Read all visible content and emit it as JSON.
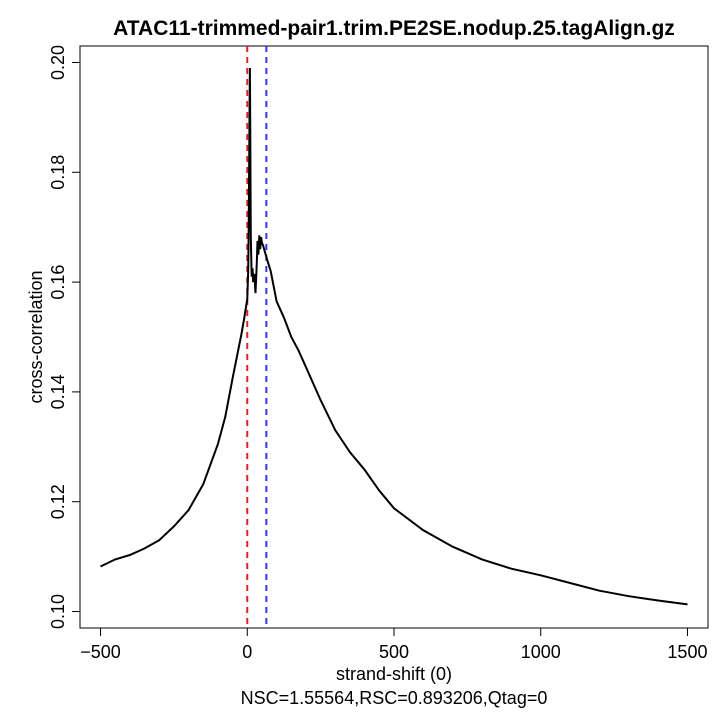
{
  "chart_data": {
    "type": "line",
    "title": "ATAC11-trimmed-pair1.trim.PE2SE.nodup.25.tagAlign.gz",
    "xlabel": "strand-shift (0)",
    "subtitle": "NSC=1.55564,RSC=0.893206,Qtag=0",
    "ylabel": "cross-correlation",
    "xlim": [
      -570,
      1570
    ],
    "ylim": [
      0.097,
      0.203
    ],
    "xticks": [
      -500,
      0,
      500,
      1000,
      1500
    ],
    "xtick_labels": [
      "−500",
      "0",
      "500",
      "1000",
      "1500"
    ],
    "yticks": [
      0.1,
      0.12,
      0.14,
      0.16,
      0.18,
      0.2
    ],
    "ytick_labels": [
      "0.10",
      "0.12",
      "0.14",
      "0.16",
      "0.18",
      "0.20"
    ],
    "grid": false,
    "series": [
      {
        "name": "cross-correlation",
        "color": "#000000",
        "x": [
          -500,
          -450,
          -400,
          -350,
          -300,
          -250,
          -200,
          -150,
          -100,
          -75,
          -50,
          -35,
          -20,
          -10,
          0,
          3,
          5,
          7,
          9,
          10,
          12,
          15,
          18,
          20,
          24,
          28,
          32,
          35,
          38,
          41,
          44,
          47,
          50,
          55,
          60,
          70,
          80,
          100,
          125,
          150,
          175,
          200,
          250,
          300,
          350,
          400,
          450,
          500,
          600,
          700,
          800,
          900,
          1000,
          1100,
          1200,
          1300,
          1400,
          1500
        ],
        "y": [
          0.1082,
          0.1095,
          0.1103,
          0.1115,
          0.113,
          0.1155,
          0.1185,
          0.1232,
          0.1305,
          0.1355,
          0.1425,
          0.1465,
          0.1505,
          0.1535,
          0.157,
          0.162,
          0.17,
          0.185,
          0.199,
          0.19,
          0.168,
          0.161,
          0.1625,
          0.16,
          0.1615,
          0.158,
          0.163,
          0.1675,
          0.165,
          0.1685,
          0.166,
          0.1682,
          0.1672,
          0.1665,
          0.1655,
          0.1637,
          0.162,
          0.1565,
          0.1535,
          0.15,
          0.1475,
          0.1445,
          0.1385,
          0.133,
          0.129,
          0.1258,
          0.122,
          0.1188,
          0.1148,
          0.1118,
          0.1095,
          0.1078,
          0.1066,
          0.1052,
          0.1038,
          0.1028,
          0.102,
          0.1013
        ]
      }
    ],
    "vlines": [
      {
        "name": "zero-shift",
        "x": 0,
        "color": "#dd2222"
      },
      {
        "name": "fragment-length",
        "x": 65,
        "color": "#3333ee"
      }
    ]
  }
}
